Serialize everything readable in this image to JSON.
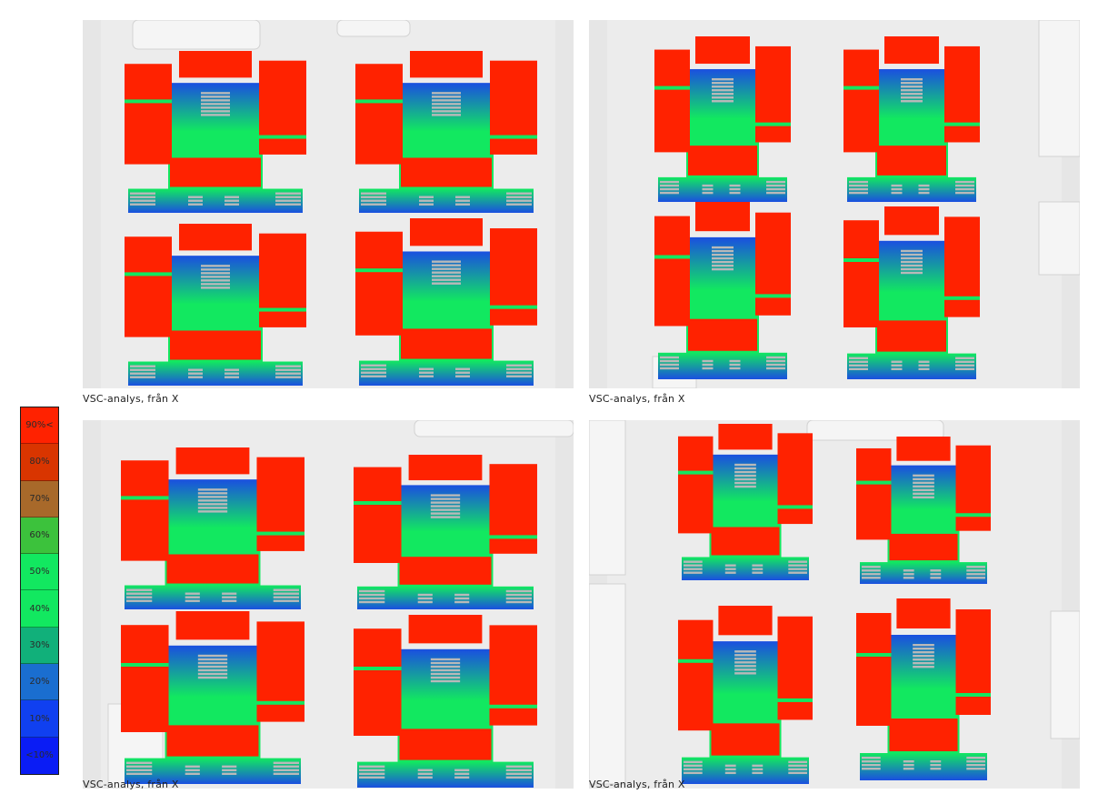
{
  "legend": {
    "items": [
      {
        "label": "90%<",
        "color": "#ff2200"
      },
      {
        "label": "80%",
        "color": "#d93500"
      },
      {
        "label": "70%",
        "color": "#a8692a"
      },
      {
        "label": "60%",
        "color": "#3cc23c"
      },
      {
        "label": "50%",
        "color": "#12e860"
      },
      {
        "label": "40%",
        "color": "#12e860"
      },
      {
        "label": "30%",
        "color": "#11b07a"
      },
      {
        "label": "20%",
        "color": "#1a6ed0"
      },
      {
        "label": "10%",
        "color": "#1040f0"
      },
      {
        "label": "<10%",
        "color": "#0a1cf5"
      }
    ]
  },
  "panels": [
    {
      "caption": "VSC-analys, från X"
    },
    {
      "caption": "VSC-analys, från X"
    },
    {
      "caption": "VSC-analys, från X"
    },
    {
      "caption": "VSC-analys, från X"
    }
  ],
  "colors": {
    "roof": "#ff2200",
    "courtyard_high": "#12e860",
    "courtyard_low": "#1a4fe0",
    "ground": "#e6e6e6",
    "balcony": "#b9b9b9"
  }
}
